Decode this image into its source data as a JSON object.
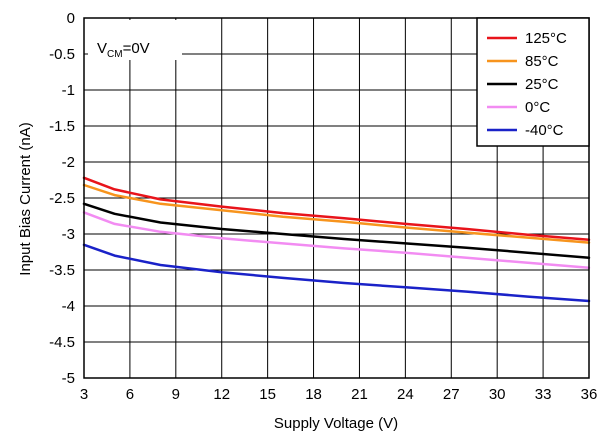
{
  "chart_data": {
    "type": "line",
    "xlabel": "Supply Voltage (V)",
    "ylabel": "Input Bias Current (nA)",
    "xlim": [
      3,
      36
    ],
    "ylim": [
      -5,
      0
    ],
    "xticks": [
      3,
      6,
      9,
      12,
      15,
      18,
      21,
      24,
      27,
      30,
      33,
      36
    ],
    "xtick_labels": [
      "3",
      "6",
      "9",
      "12",
      "15",
      "18",
      "21",
      "24",
      "27",
      "30",
      "33",
      "36"
    ],
    "yticks": [
      0,
      -0.5,
      -1,
      -1.5,
      -2,
      -2.5,
      -3,
      -3.5,
      -4,
      -4.5,
      -5
    ],
    "ytick_labels": [
      "0",
      "-0.5",
      "-1",
      "-1.5",
      "-2",
      "-2.5",
      "-3",
      "-3.5",
      "-4",
      "-4.5",
      "-5"
    ],
    "grid": true,
    "legend_position": "top-right",
    "annotation": {
      "main": "V",
      "sub": "CM",
      "rest": "=0V"
    },
    "series": [
      {
        "name": "125°C",
        "color": "#e8141b",
        "x": [
          3,
          5,
          8,
          12,
          16,
          20,
          24,
          28,
          32,
          36
        ],
        "y": [
          -2.22,
          -2.38,
          -2.52,
          -2.62,
          -2.71,
          -2.78,
          -2.86,
          -2.93,
          -3.01,
          -3.08
        ]
      },
      {
        "name": "85°C",
        "color": "#f7941d",
        "x": [
          3,
          5,
          8,
          12,
          16,
          20,
          24,
          28,
          32,
          36
        ],
        "y": [
          -2.32,
          -2.46,
          -2.58,
          -2.67,
          -2.76,
          -2.83,
          -2.91,
          -2.98,
          -3.05,
          -3.12
        ]
      },
      {
        "name": "25°C",
        "color": "#000000",
        "x": [
          3,
          5,
          8,
          12,
          16,
          20,
          24,
          28,
          32,
          36
        ],
        "y": [
          -2.58,
          -2.72,
          -2.84,
          -2.93,
          -3.0,
          -3.07,
          -3.13,
          -3.19,
          -3.26,
          -3.33
        ]
      },
      {
        "name": "0°C",
        "color": "#f28cf2",
        "x": [
          3,
          5,
          8,
          12,
          16,
          20,
          24,
          28,
          32,
          36
        ],
        "y": [
          -2.7,
          -2.86,
          -2.97,
          -3.06,
          -3.13,
          -3.2,
          -3.26,
          -3.33,
          -3.4,
          -3.47
        ]
      },
      {
        "name": "-40°C",
        "color": "#1a22c8",
        "x": [
          3,
          5,
          8,
          12,
          16,
          20,
          24,
          28,
          32,
          36
        ],
        "y": [
          -3.15,
          -3.3,
          -3.43,
          -3.53,
          -3.61,
          -3.68,
          -3.74,
          -3.8,
          -3.87,
          -3.93
        ]
      }
    ]
  }
}
